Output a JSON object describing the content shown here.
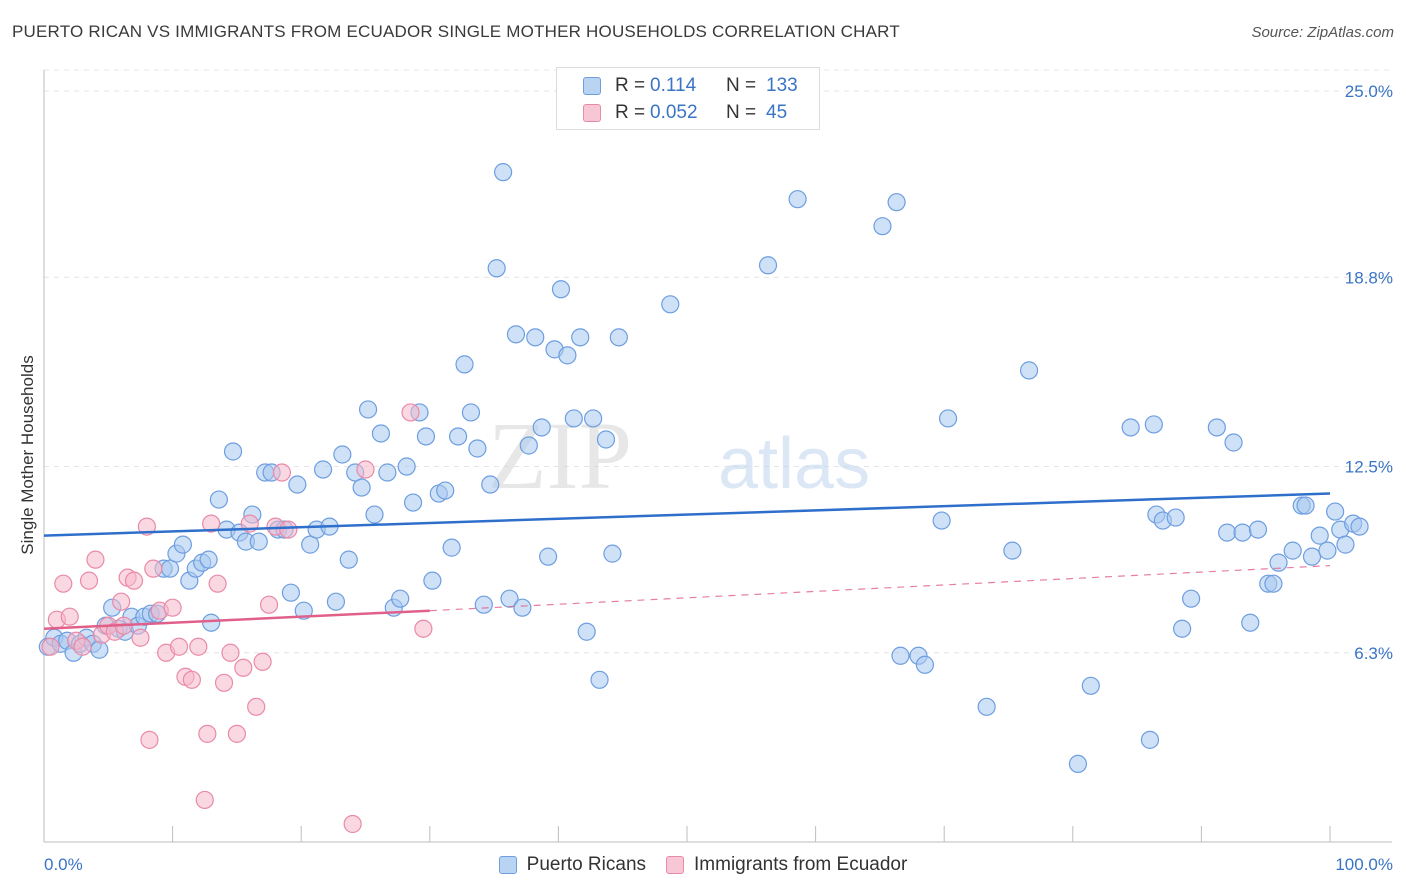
{
  "title": "PUERTO RICAN VS IMMIGRANTS FROM ECUADOR SINGLE MOTHER HOUSEHOLDS CORRELATION CHART",
  "source": "Source: ZipAtlas.com",
  "watermark": {
    "part1": "ZIP",
    "part2": "atlas"
  },
  "stats": {
    "r_label": "R =",
    "n_label": "N =",
    "rows": [
      {
        "r": "0.114",
        "n": "133"
      },
      {
        "r": "0.052",
        "n": "45"
      }
    ]
  },
  "colors": {
    "blue_fill": "#a8c8f0",
    "blue_stroke": "#6e9ee0",
    "blue_line": "#2f6fcc",
    "pink_fill": "#f5b8cb",
    "pink_stroke": "#e98aa8",
    "pink_line": "#e0608a",
    "axis_text": "#3a74c4"
  },
  "chart_data": {
    "type": "scatter",
    "xlabel": "",
    "ylabel": "Single Mother Households",
    "xlim": [
      0,
      100
    ],
    "ylim": [
      0,
      25.7
    ],
    "x_tick_labels": [
      "0.0%",
      "100.0%"
    ],
    "y_ticks": [
      6.3,
      12.5,
      18.8,
      25.0
    ],
    "y_tick_labels": [
      "6.3%",
      "12.5%",
      "18.8%",
      "25.0%"
    ],
    "grid": true,
    "legend_position": "bottom",
    "series": [
      {
        "name": "Puerto Ricans",
        "trend": {
          "x": [
            0,
            100
          ],
          "y": [
            10.2,
            11.6
          ]
        },
        "points": [
          [
            0.3,
            6.5
          ],
          [
            0.8,
            6.8
          ],
          [
            1.3,
            6.6
          ],
          [
            1.8,
            6.7
          ],
          [
            2.3,
            6.3
          ],
          [
            2.8,
            6.6
          ],
          [
            3.3,
            6.8
          ],
          [
            3.8,
            6.6
          ],
          [
            4.3,
            6.4
          ],
          [
            4.8,
            7.2
          ],
          [
            5.3,
            7.8
          ],
          [
            5.8,
            7.1
          ],
          [
            6.3,
            7.0
          ],
          [
            6.8,
            7.5
          ],
          [
            7.3,
            7.2
          ],
          [
            7.8,
            7.5
          ],
          [
            8.3,
            7.6
          ],
          [
            8.8,
            7.6
          ],
          [
            9.3,
            9.1
          ],
          [
            9.8,
            9.1
          ],
          [
            10.3,
            9.6
          ],
          [
            10.8,
            9.9
          ],
          [
            11.3,
            8.7
          ],
          [
            11.8,
            9.1
          ],
          [
            12.3,
            9.3
          ],
          [
            12.8,
            9.4
          ],
          [
            13.0,
            7.3
          ],
          [
            13.6,
            11.4
          ],
          [
            14.2,
            10.4
          ],
          [
            14.7,
            13.0
          ],
          [
            15.2,
            10.3
          ],
          [
            15.7,
            10.0
          ],
          [
            16.2,
            10.9
          ],
          [
            16.7,
            10.0
          ],
          [
            17.2,
            12.3
          ],
          [
            17.7,
            12.3
          ],
          [
            18.2,
            10.4
          ],
          [
            18.7,
            10.4
          ],
          [
            19.2,
            8.3
          ],
          [
            19.7,
            11.9
          ],
          [
            20.2,
            7.7
          ],
          [
            20.7,
            9.9
          ],
          [
            21.2,
            10.4
          ],
          [
            21.7,
            12.4
          ],
          [
            22.2,
            10.5
          ],
          [
            22.7,
            8.0
          ],
          [
            23.2,
            12.9
          ],
          [
            23.7,
            9.4
          ],
          [
            24.2,
            12.3
          ],
          [
            24.7,
            11.8
          ],
          [
            25.2,
            14.4
          ],
          [
            25.7,
            10.9
          ],
          [
            26.2,
            13.6
          ],
          [
            26.7,
            12.3
          ],
          [
            27.2,
            7.8
          ],
          [
            27.7,
            8.1
          ],
          [
            28.2,
            12.5
          ],
          [
            28.7,
            11.3
          ],
          [
            29.2,
            14.3
          ],
          [
            29.7,
            13.5
          ],
          [
            30.2,
            8.7
          ],
          [
            30.7,
            11.6
          ],
          [
            31.2,
            11.7
          ],
          [
            31.7,
            9.8
          ],
          [
            32.2,
            13.5
          ],
          [
            32.7,
            15.9
          ],
          [
            33.2,
            14.3
          ],
          [
            33.7,
            13.1
          ],
          [
            34.2,
            7.9
          ],
          [
            34.7,
            11.9
          ],
          [
            35.2,
            19.1
          ],
          [
            35.7,
            22.3
          ],
          [
            36.2,
            8.1
          ],
          [
            36.7,
            16.9
          ],
          [
            37.2,
            7.8
          ],
          [
            37.7,
            13.2
          ],
          [
            38.2,
            16.8
          ],
          [
            38.7,
            13.8
          ],
          [
            39.2,
            9.5
          ],
          [
            39.7,
            16.4
          ],
          [
            40.2,
            18.4
          ],
          [
            40.7,
            16.2
          ],
          [
            41.2,
            14.1
          ],
          [
            41.7,
            16.8
          ],
          [
            42.2,
            7.0
          ],
          [
            42.7,
            14.1
          ],
          [
            43.2,
            5.4
          ],
          [
            43.7,
            13.4
          ],
          [
            44.2,
            9.6
          ],
          [
            44.7,
            16.8
          ],
          [
            48.7,
            17.9
          ],
          [
            56.3,
            19.2
          ],
          [
            58.6,
            21.4
          ],
          [
            65.2,
            20.5
          ],
          [
            66.3,
            21.3
          ],
          [
            66.6,
            6.2
          ],
          [
            68.0,
            6.2
          ],
          [
            68.5,
            5.9
          ],
          [
            69.8,
            10.7
          ],
          [
            70.3,
            14.1
          ],
          [
            73.3,
            4.5
          ],
          [
            75.3,
            9.7
          ],
          [
            76.6,
            15.7
          ],
          [
            80.4,
            2.6
          ],
          [
            81.4,
            5.2
          ],
          [
            84.5,
            13.8
          ],
          [
            86.0,
            3.4
          ],
          [
            86.3,
            13.9
          ],
          [
            86.5,
            10.9
          ],
          [
            87.0,
            10.7
          ],
          [
            88.0,
            10.8
          ],
          [
            88.5,
            7.1
          ],
          [
            89.2,
            8.1
          ],
          [
            91.2,
            13.8
          ],
          [
            92.0,
            10.3
          ],
          [
            92.5,
            13.3
          ],
          [
            93.2,
            10.3
          ],
          [
            93.8,
            7.3
          ],
          [
            94.4,
            10.4
          ],
          [
            95.2,
            8.6
          ],
          [
            95.6,
            8.6
          ],
          [
            96.0,
            9.3
          ],
          [
            97.1,
            9.7
          ],
          [
            97.8,
            11.2
          ],
          [
            98.1,
            11.2
          ],
          [
            98.6,
            9.5
          ],
          [
            99.2,
            10.2
          ],
          [
            99.8,
            9.7
          ],
          [
            100.4,
            11.0
          ],
          [
            100.8,
            10.4
          ],
          [
            101.2,
            9.9
          ],
          [
            101.8,
            10.6
          ],
          [
            102.3,
            10.5
          ]
        ]
      },
      {
        "name": "Immigrants from Ecuador",
        "trend": {
          "x": [
            0,
            30
          ],
          "y": [
            7.1,
            7.7
          ]
        },
        "trend_extension": {
          "x": [
            30,
            100
          ],
          "y": [
            7.7,
            9.2
          ]
        },
        "points": [
          [
            0.5,
            6.5
          ],
          [
            1.0,
            7.4
          ],
          [
            1.5,
            8.6
          ],
          [
            2.0,
            7.5
          ],
          [
            2.5,
            6.7
          ],
          [
            3.0,
            6.5
          ],
          [
            3.5,
            8.7
          ],
          [
            4.0,
            9.4
          ],
          [
            4.5,
            6.9
          ],
          [
            5.0,
            7.2
          ],
          [
            5.5,
            7.0
          ],
          [
            6.0,
            8.0
          ],
          [
            6.2,
            7.2
          ],
          [
            6.5,
            8.8
          ],
          [
            7.0,
            8.7
          ],
          [
            7.5,
            6.8
          ],
          [
            8.0,
            10.5
          ],
          [
            8.2,
            3.4
          ],
          [
            8.5,
            9.1
          ],
          [
            9.0,
            7.7
          ],
          [
            9.5,
            6.3
          ],
          [
            10.0,
            7.8
          ],
          [
            10.5,
            6.5
          ],
          [
            11.0,
            5.5
          ],
          [
            11.5,
            5.4
          ],
          [
            12.0,
            6.5
          ],
          [
            12.5,
            1.4
          ],
          [
            12.7,
            3.6
          ],
          [
            13.0,
            10.6
          ],
          [
            13.5,
            8.6
          ],
          [
            14.0,
            5.3
          ],
          [
            14.5,
            6.3
          ],
          [
            15.0,
            3.6
          ],
          [
            15.5,
            5.8
          ],
          [
            16.0,
            10.6
          ],
          [
            16.5,
            4.5
          ],
          [
            17.0,
            6.0
          ],
          [
            17.5,
            7.9
          ],
          [
            18.0,
            10.5
          ],
          [
            18.5,
            12.3
          ],
          [
            19.0,
            10.4
          ],
          [
            24.0,
            0.6
          ],
          [
            25.0,
            12.4
          ],
          [
            28.5,
            14.3
          ],
          [
            29.5,
            7.1
          ]
        ]
      }
    ]
  }
}
